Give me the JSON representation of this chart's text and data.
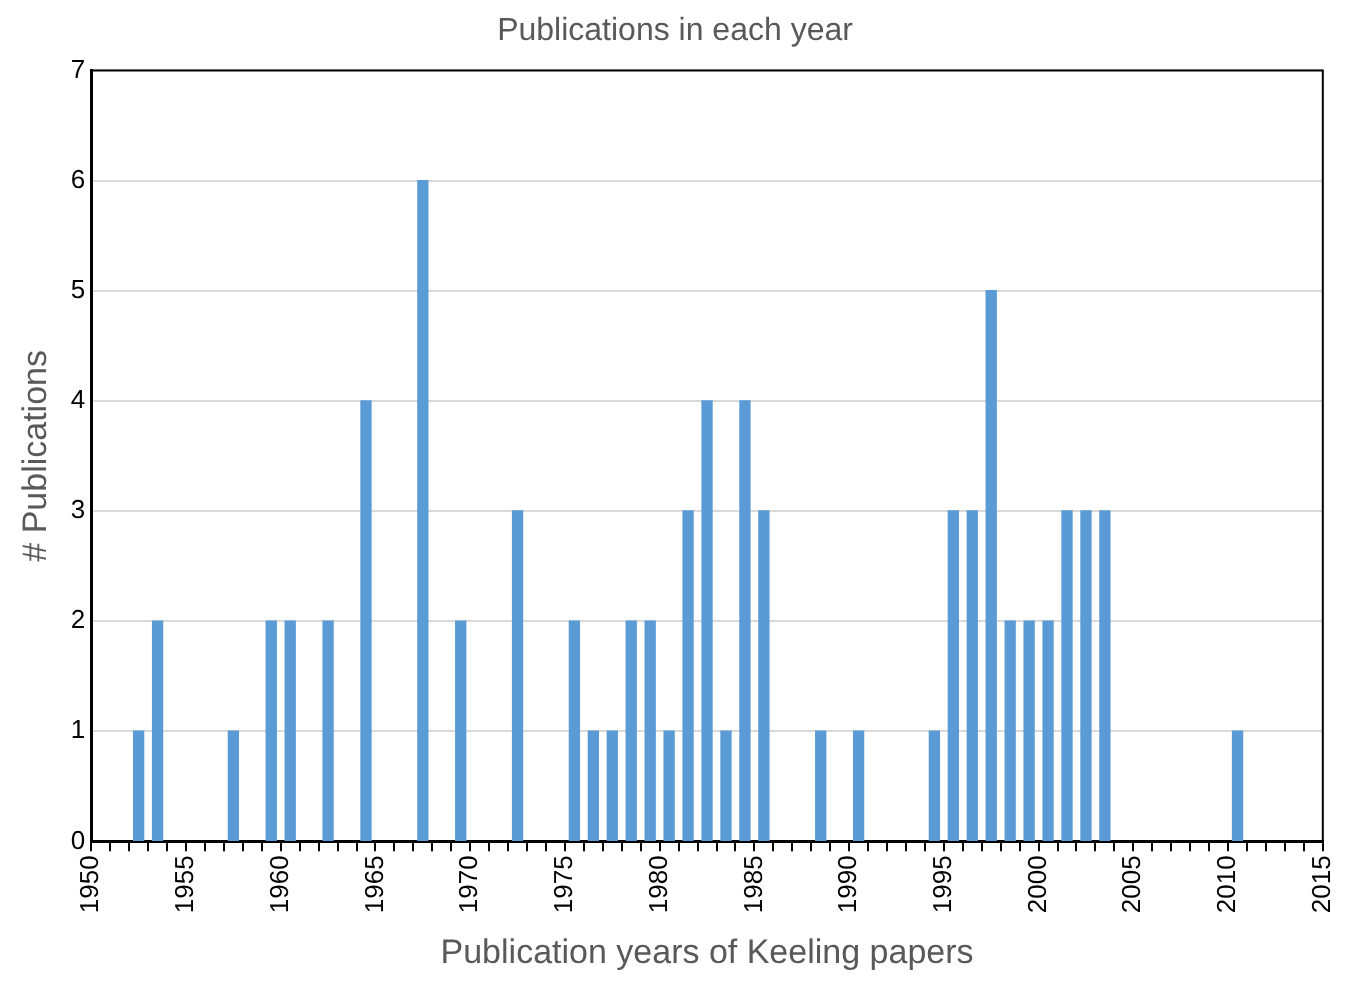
{
  "chart_data": {
    "type": "bar",
    "title": "Publications in each year",
    "xlabel": "Publication years of Keeling papers",
    "ylabel": "# Publications",
    "x": [
      1952.5,
      1953.5,
      1957.5,
      1959.5,
      1960.5,
      1962.5,
      1964.5,
      1967.5,
      1969.5,
      1972.5,
      1975.5,
      1976.5,
      1977.5,
      1978.5,
      1979.5,
      1980.5,
      1981.5,
      1982.5,
      1983.5,
      1984.5,
      1985.5,
      1988.5,
      1990.5,
      1994.5,
      1995.5,
      1996.5,
      1997.5,
      1998.5,
      1999.5,
      2000.5,
      2001.5,
      2002.5,
      2003.5,
      2010.5
    ],
    "values": [
      1,
      2,
      1,
      2,
      2,
      2,
      4,
      6,
      2,
      3,
      2,
      1,
      1,
      2,
      2,
      1,
      3,
      4,
      1,
      4,
      3,
      1,
      1,
      1,
      3,
      3,
      5,
      2,
      2,
      2,
      3,
      3,
      3,
      1
    ],
    "color": "#5b9bd5",
    "xlim": [
      1950,
      2015
    ],
    "xticks": [
      1950,
      {
        "value": 1951,
        "label": null
      },
      {
        "value": 1952,
        "label": null
      },
      {
        "value": 1953,
        "label": null
      },
      {
        "value": 1954,
        "label": null
      },
      1955,
      {
        "value": 1956,
        "label": null
      },
      {
        "value": 1957,
        "label": null
      },
      {
        "value": 1958,
        "label": null
      },
      {
        "value": 1959,
        "label": null
      },
      1960,
      {
        "value": 1961,
        "label": null
      },
      {
        "value": 1962,
        "label": null
      },
      {
        "value": 1963,
        "label": null
      },
      {
        "value": 1964,
        "label": null
      },
      1965,
      {
        "value": 1966,
        "label": null
      },
      {
        "value": 1967,
        "label": null
      },
      {
        "value": 1968,
        "label": null
      },
      {
        "value": 1969,
        "label": null
      },
      1970,
      {
        "value": 1971,
        "label": null
      },
      {
        "value": 1972,
        "label": null
      },
      {
        "value": 1973,
        "label": null
      },
      {
        "value": 1974,
        "label": null
      },
      1975,
      {
        "value": 1976,
        "label": null
      },
      {
        "value": 1977,
        "label": null
      },
      {
        "value": 1978,
        "label": null
      },
      {
        "value": 1979,
        "label": null
      },
      1980,
      {
        "value": 1981,
        "label": null
      },
      {
        "value": 1982,
        "label": null
      },
      {
        "value": 1983,
        "label": null
      },
      {
        "value": 1984,
        "label": null
      },
      1985,
      {
        "value": 1986,
        "label": null
      },
      {
        "value": 1987,
        "label": null
      },
      {
        "value": 1988,
        "label": null
      },
      {
        "value": 1989,
        "label": null
      },
      1990,
      {
        "value": 1991,
        "label": null
      },
      {
        "value": 1992,
        "label": null
      },
      {
        "value": 1993,
        "label": null
      },
      {
        "value": 1994,
        "label": null
      },
      1995,
      {
        "value": 1996,
        "label": null
      },
      {
        "value": 1997,
        "label": null
      },
      {
        "value": 1998,
        "label": null
      },
      {
        "value": 1999,
        "label": null
      },
      2000,
      {
        "value": 2001,
        "label": null
      },
      {
        "value": 2002,
        "label": null
      },
      {
        "value": 2003,
        "label": null
      },
      {
        "value": 2004,
        "label": null
      },
      2005,
      {
        "value": 2006,
        "label": null
      },
      {
        "value": 2007,
        "label": null
      },
      {
        "value": 2008,
        "label": null
      },
      {
        "value": 2009,
        "label": null
      },
      2010,
      {
        "value": 2011,
        "label": null
      },
      {
        "value": 2012,
        "label": null
      },
      {
        "value": 2013,
        "label": null
      },
      {
        "value": 2014,
        "label": null
      },
      2015
    ],
    "ylim": [
      0,
      7
    ],
    "yticks": [
      0,
      1,
      2,
      3,
      4,
      5,
      6,
      7
    ],
    "grid": "y"
  }
}
